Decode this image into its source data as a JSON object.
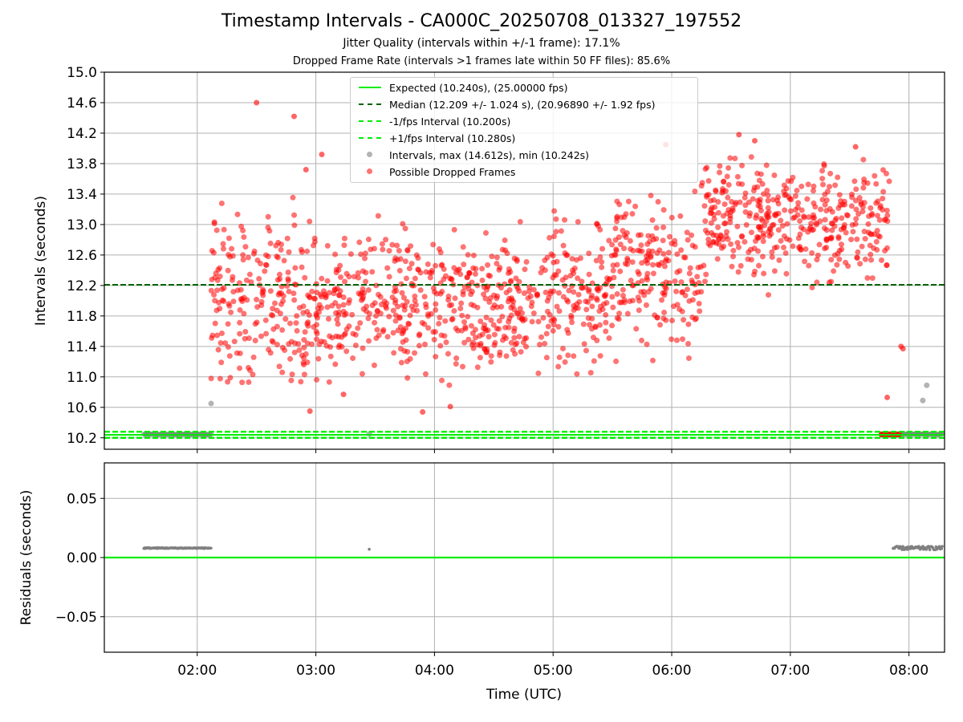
{
  "title": "Timestamp Intervals - CA000C_20250708_013327_197552",
  "subtitle1": "Jitter Quality (intervals within +/-1 frame): 17.1%",
  "subtitle2": "Dropped Frame Rate (intervals >1 frames late within 50 FF files): 85.6%",
  "legend": [
    {
      "label": "Expected (10.240s), (25.00000 fps)",
      "style": "solid",
      "color": "#00ee00"
    },
    {
      "label": "Median (12.209 +/- 1.024 s), (20.96890 +/- 1.92 fps)",
      "style": "dashed",
      "color": "#006400"
    },
    {
      "label": "-1/fps Interval (10.200s)",
      "style": "dashed",
      "color": "#00ee00"
    },
    {
      "label": "+1/fps Interval (10.280s)",
      "style": "dashed",
      "color": "#00ee00"
    },
    {
      "label": "Intervals, max (14.612s), min (10.242s)",
      "style": "dot",
      "color": "#808080"
    },
    {
      "label": "Possible Dropped Frames",
      "style": "dot",
      "color": "#ff0000"
    }
  ],
  "colors": {
    "expected": "#00ee00",
    "median": "#006400",
    "interval": "#808080",
    "dropped": "#ff0000",
    "grid": "#b0b0b0"
  },
  "chart_data": [
    {
      "type": "scatter",
      "panel": "top",
      "ylabel": "Intervals (seconds)",
      "xlabel": "",
      "xlim": [
        "01:13",
        "08:18"
      ],
      "ylim": [
        10.05,
        15.0
      ],
      "yticks": [
        "10.2",
        "10.6",
        "11.0",
        "11.4",
        "11.8",
        "12.2",
        "12.6",
        "13.0",
        "13.4",
        "13.8",
        "14.2",
        "14.6",
        "15.0"
      ],
      "xticks": [
        "02:00",
        "03:00",
        "04:00",
        "05:00",
        "06:00",
        "07:00",
        "08:00"
      ],
      "grid": true,
      "legend_position": "upper-center",
      "hlines": [
        {
          "name": "Expected",
          "y": 10.24
        },
        {
          "name": "Median",
          "y": 12.209
        },
        {
          "name": "-1/fps Interval",
          "y": 10.2
        },
        {
          "name": "+1/fps Interval",
          "y": 10.28
        }
      ],
      "series": [
        {
          "name": "Intervals",
          "baseline_runs": [
            {
              "x_start": "01:33",
              "x_end": "02:07",
              "y": 10.246
            },
            {
              "x_start": "07:52",
              "x_end": "08:17",
              "y": 10.247
            }
          ],
          "points": [
            [
              "02:07",
              10.65
            ],
            [
              "08:07",
              10.69
            ],
            [
              "08:09",
              10.89
            ],
            [
              "03:27",
              10.25
            ]
          ]
        },
        {
          "name": "Possible Dropped Frames",
          "points_estimated": true,
          "segments": [
            {
              "x_start": "02:07",
              "x_end": "03:00",
              "mean": 12.0,
              "spread": 0.55
            },
            {
              "x_start": "03:00",
              "x_end": "04:30",
              "mean": 11.92,
              "spread": 0.45
            },
            {
              "x_start": "04:30",
              "x_end": "05:30",
              "mean": 12.05,
              "spread": 0.45
            },
            {
              "x_start": "05:30",
              "x_end": "06:15",
              "mean": 12.35,
              "spread": 0.45
            },
            {
              "x_start": "06:15",
              "x_end": "07:50",
              "mean": 13.08,
              "spread": 0.35
            }
          ],
          "outliers": [
            [
              "02:30",
              14.6
            ],
            [
              "02:49",
              14.42
            ],
            [
              "02:55",
              13.72
            ],
            [
              "03:03",
              13.92
            ],
            [
              "05:57",
              14.05
            ],
            [
              "06:34",
              14.18
            ],
            [
              "06:42",
              14.1
            ],
            [
              "07:33",
              14.02
            ],
            [
              "02:57",
              10.55
            ],
            [
              "03:54",
              10.54
            ],
            [
              "03:14",
              10.77
            ],
            [
              "04:08",
              10.61
            ],
            [
              "07:56",
              11.4
            ],
            [
              "07:57",
              11.37
            ],
            [
              "07:49",
              10.73
            ]
          ],
          "dropped_run": {
            "x_start": "07:46",
            "x_end": "07:55",
            "y": 10.245
          }
        }
      ]
    },
    {
      "type": "scatter",
      "panel": "bottom",
      "xlabel": "Time (UTC)",
      "ylabel": "Residuals (seconds)",
      "xlim": [
        "01:13",
        "08:18"
      ],
      "ylim": [
        -0.08,
        0.08
      ],
      "yticks": [
        "−0.05",
        "0.00",
        "0.05"
      ],
      "xticks": [
        "02:00",
        "03:00",
        "04:00",
        "05:00",
        "06:00",
        "07:00",
        "08:00"
      ],
      "grid": true,
      "hlines": [
        {
          "name": "Expected",
          "y": 0.0
        }
      ],
      "series": [
        {
          "name": "Residuals",
          "runs": [
            {
              "x_start": "01:33",
              "x_end": "02:07",
              "y": 0.008
            },
            {
              "x_start": "07:52",
              "x_end": "08:17",
              "y": 0.008
            }
          ],
          "points": [
            [
              "03:27",
              0.007
            ]
          ]
        }
      ]
    }
  ]
}
